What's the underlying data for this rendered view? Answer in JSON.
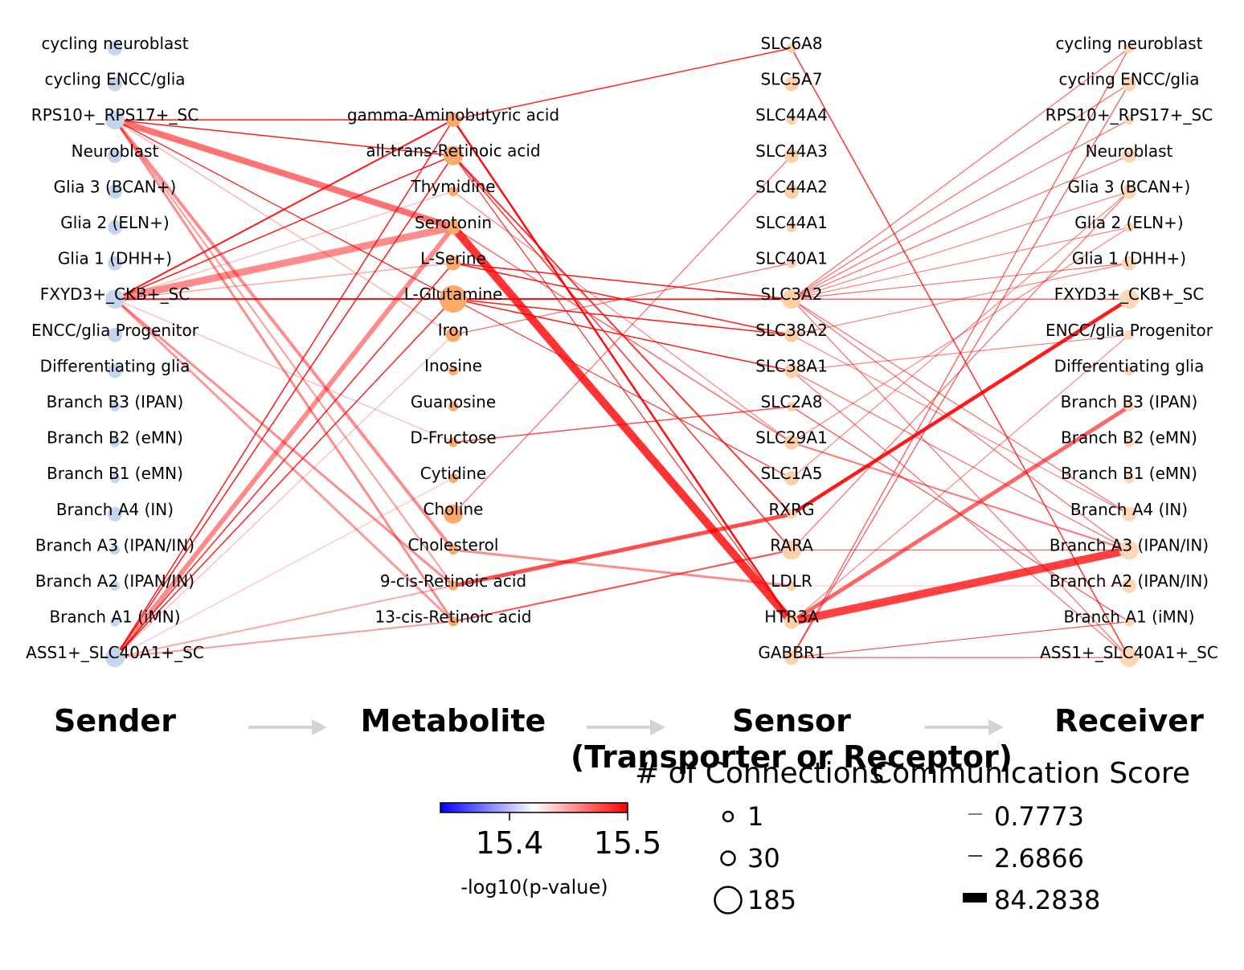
{
  "columns": {
    "sender": {
      "title": "Sender",
      "color": "#c6d5ee",
      "nodes": [
        "cycling neuroblast",
        "cycling ENCC/glia",
        "RPS10+_RPS17+_SC",
        "Neuroblast",
        "Glia 3 (BCAN+)",
        "Glia 2 (ELN+)",
        "Glia 1 (DHH+)",
        "FXYD3+_CKB+_SC",
        "ENCC/glia Progenitor",
        "Differentiating glia",
        "Branch B3 (IPAN)",
        "Branch B2 (eMN)",
        "Branch B1 (eMN)",
        "Branch A4 (IN)",
        "Branch A3 (IPAN/IN)",
        "Branch A2 (IPAN/IN)",
        "Branch A1 (iMN)",
        "ASS1+_SLC40A1+_SC"
      ],
      "sizes": [
        2,
        2,
        3,
        2,
        2,
        2,
        2,
        3,
        2,
        2,
        1,
        1,
        1,
        2,
        1,
        1,
        1,
        3
      ]
    },
    "metabolite": {
      "title": "Metabolite",
      "color": "#fdaa68",
      "nodes": [
        "gamma-Aminobutyric acid",
        "all-trans-Retinoic acid",
        "Thymidine",
        "Serotonin",
        "L-Serine",
        "L-Glutamine",
        "Iron",
        "Inosine",
        "Guanosine",
        "D-Fructose",
        "Cytidine",
        "Choline",
        "Cholesterol",
        "9-cis-Retinoic acid",
        "13-cis-Retinoic acid"
      ],
      "sizes": [
        2,
        3,
        1,
        2,
        2,
        4,
        2,
        1,
        1,
        1,
        1,
        3,
        1,
        1,
        1
      ]
    },
    "sensor": {
      "title_line1": "Sensor",
      "title_line2": "(Transporter or Receptor)",
      "color": "#fdd0a8",
      "nodes": [
        "SLC6A8",
        "SLC5A7",
        "SLC44A4",
        "SLC44A3",
        "SLC44A2",
        "SLC44A1",
        "SLC40A1",
        "SLC3A2",
        "SLC38A2",
        "SLC38A1",
        "SLC2A8",
        "SLC29A1",
        "SLC1A5",
        "RXRG",
        "RARA",
        "LDLR",
        "HTR3A",
        "GABBR1"
      ],
      "sizes": [
        1,
        2,
        1,
        2,
        2,
        1,
        1,
        3,
        2,
        2,
        1,
        2,
        2,
        1,
        3,
        1,
        2,
        2
      ]
    },
    "receiver": {
      "title": "Receiver",
      "color": "#fdd7b6",
      "nodes": [
        "cycling neuroblast",
        "cycling ENCC/glia",
        "RPS10+_RPS17+_SC",
        "Neuroblast",
        "Glia 3 (BCAN+)",
        "Glia 2 (ELN+)",
        "Glia 1 (DHH+)",
        "FXYD3+_CKB+_SC",
        "ENCC/glia Progenitor",
        "Differentiating glia",
        "Branch B3 (IPAN)",
        "Branch B2 (eMN)",
        "Branch B1 (eMN)",
        "Branch A4 (IN)",
        "Branch A3 (IPAN/IN)",
        "Branch A2 (IPAN/IN)",
        "Branch A1 (iMN)",
        "ASS1+_SLC40A1+_SC"
      ],
      "sizes": [
        1,
        2,
        1,
        2,
        2,
        1,
        2,
        3,
        1,
        1,
        1,
        1,
        1,
        2,
        3,
        2,
        1,
        3
      ]
    }
  },
  "edges": {
    "sender_metabolite": [
      [
        2,
        0,
        1.5,
        0.9
      ],
      [
        2,
        1,
        1.5,
        0.9
      ],
      [
        2,
        3,
        8,
        0.55
      ],
      [
        2,
        5,
        1.2,
        0.15
      ],
      [
        2,
        6,
        1.5,
        0.3
      ],
      [
        2,
        12,
        4,
        0.45
      ],
      [
        2,
        13,
        2,
        0.4
      ],
      [
        2,
        14,
        3,
        0.45
      ],
      [
        2,
        5,
        1.2,
        0.9
      ],
      [
        7,
        0,
        2,
        0.9
      ],
      [
        7,
        1,
        1.5,
        0.9
      ],
      [
        7,
        3,
        9,
        0.45
      ],
      [
        7,
        4,
        1.5,
        0.35
      ],
      [
        7,
        5,
        2,
        0.95
      ],
      [
        7,
        2,
        1.2,
        0.3
      ],
      [
        7,
        13,
        3,
        0.45
      ],
      [
        7,
        14,
        3,
        0.4
      ],
      [
        7,
        9,
        1.2,
        0.3
      ],
      [
        17,
        0,
        1.5,
        0.9
      ],
      [
        17,
        1,
        1.5,
        0.9
      ],
      [
        17,
        3,
        6,
        0.45
      ],
      [
        17,
        4,
        1.5,
        0.88
      ],
      [
        17,
        5,
        1.5,
        0.88
      ],
      [
        17,
        6,
        1.2,
        0.3
      ],
      [
        17,
        13,
        2,
        0.35
      ],
      [
        17,
        14,
        2,
        0.4
      ],
      [
        17,
        10,
        1.2,
        0.25
      ]
    ],
    "metabolite_sensor": [
      [
        0,
        0,
        1.5,
        0.85
      ],
      [
        0,
        16,
        2.5,
        0.95
      ],
      [
        1,
        13,
        2,
        0.8
      ],
      [
        1,
        14,
        1.5,
        0.8
      ],
      [
        3,
        16,
        10,
        0.8
      ],
      [
        4,
        7,
        1.5,
        0.9
      ],
      [
        4,
        8,
        1.5,
        0.9
      ],
      [
        5,
        7,
        2,
        0.95
      ],
      [
        5,
        8,
        1.5,
        0.9
      ],
      [
        5,
        9,
        1.5,
        0.9
      ],
      [
        5,
        12,
        1.2,
        0.8
      ],
      [
        6,
        6,
        1.2,
        0.6
      ],
      [
        9,
        10,
        1.5,
        0.7
      ],
      [
        11,
        3,
        1.2,
        0.6
      ],
      [
        12,
        15,
        3,
        0.45
      ],
      [
        13,
        13,
        5,
        0.7
      ],
      [
        14,
        14,
        2,
        0.7
      ],
      [
        3,
        11,
        1.5,
        0.6
      ],
      [
        2,
        11,
        1.2,
        0.5
      ],
      [
        1,
        16,
        1.2,
        0.85
      ]
    ],
    "sensor_receiver": [
      [
        0,
        17,
        1.5,
        0.8
      ],
      [
        13,
        7,
        4.5,
        0.9
      ],
      [
        16,
        14,
        10,
        0.75
      ],
      [
        16,
        10,
        5,
        0.6
      ],
      [
        7,
        0,
        1.2,
        0.6
      ],
      [
        7,
        1,
        1.2,
        0.6
      ],
      [
        7,
        2,
        1.2,
        0.6
      ],
      [
        7,
        3,
        1.2,
        0.6
      ],
      [
        7,
        4,
        1.2,
        0.5
      ],
      [
        7,
        5,
        1.2,
        0.5
      ],
      [
        7,
        6,
        1.2,
        0.6
      ],
      [
        7,
        7,
        1.2,
        0.8
      ],
      [
        7,
        13,
        1.2,
        0.6
      ],
      [
        7,
        14,
        1.2,
        0.6
      ],
      [
        7,
        17,
        1.2,
        0.6
      ],
      [
        8,
        6,
        1.2,
        0.5
      ],
      [
        8,
        13,
        1.2,
        0.5
      ],
      [
        9,
        17,
        1.2,
        0.6
      ],
      [
        9,
        14,
        1.2,
        0.6
      ],
      [
        10,
        16,
        1.2,
        0.7
      ],
      [
        11,
        14,
        2,
        0.55
      ],
      [
        15,
        15,
        1.2,
        0.2
      ],
      [
        14,
        14,
        1.2,
        0.6
      ],
      [
        17,
        0,
        1.2,
        0.7
      ],
      [
        17,
        1,
        1.2,
        0.7
      ],
      [
        17,
        16,
        1.2,
        0.7
      ],
      [
        17,
        17,
        1.2,
        0.7
      ],
      [
        16,
        8,
        1.2,
        0.5
      ],
      [
        12,
        4,
        1.2,
        0.5
      ],
      [
        14,
        4,
        1.2,
        0.6
      ],
      [
        11,
        5,
        1.2,
        0.5
      ],
      [
        9,
        8,
        1.2,
        0.5
      ]
    ]
  },
  "colorbar": {
    "ticks": [
      "15.4",
      "15.5"
    ],
    "label": "-log10(p-value)",
    "color_low": "#0000ff",
    "color_mid": "#ffffff",
    "color_high": "#ff0000"
  },
  "legend_size": {
    "title": "# of Connections",
    "items": [
      {
        "label": "1",
        "value": 1
      },
      {
        "label": "30",
        "value": 30
      },
      {
        "label": "185",
        "value": 185
      }
    ]
  },
  "legend_score": {
    "title": "Communication Score",
    "items": [
      {
        "label": "0.7773",
        "value": 0.7773
      },
      {
        "label": "2.6866",
        "value": 2.6866
      },
      {
        "label": "84.2838",
        "value": 84.2838
      }
    ]
  }
}
